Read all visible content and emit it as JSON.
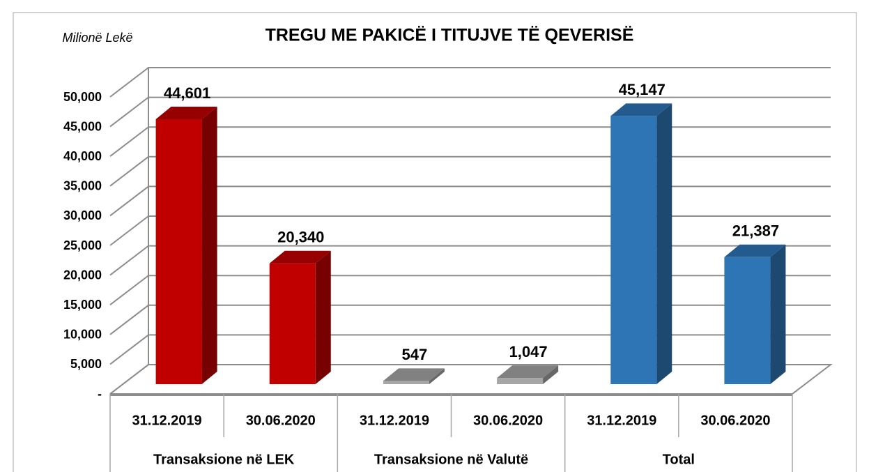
{
  "chart_data": {
    "type": "bar3d",
    "title": "TREGU ME PAKICË I TITUJVE TË QEVERISË",
    "y_label": "Milionë Lekë",
    "categories": [
      "31.12.2019",
      "30.06.2020",
      "31.12.2019",
      "30.06.2020",
      "31.12.2019",
      "30.06.2020"
    ],
    "group_categories": [
      "Transaksione në LEK",
      "Transaksione në Valutë",
      "Total"
    ],
    "values": [
      44601,
      20340,
      547,
      1047,
      45147,
      21387
    ],
    "value_labels": [
      "44,601",
      "20,340",
      "547",
      "1,047",
      "45,147",
      "21,387"
    ],
    "colors": [
      "#c00000",
      "#c00000",
      "#a6a6a6",
      "#a6a6a6",
      "#2e75b6",
      "#2e75b6"
    ],
    "ylim": [
      0,
      50000
    ],
    "yticks": [
      {
        "value": 0,
        "label": "-"
      },
      {
        "value": 5000,
        "label": "5,000"
      },
      {
        "value": 10000,
        "label": "10,000"
      },
      {
        "value": 15000,
        "label": "15,000"
      },
      {
        "value": 20000,
        "label": "20,000"
      },
      {
        "value": 25000,
        "label": "25,000"
      },
      {
        "value": 30000,
        "label": "30,000"
      },
      {
        "value": 35000,
        "label": "35,000"
      },
      {
        "value": 40000,
        "label": "40,000"
      },
      {
        "value": 45000,
        "label": "45,000"
      },
      {
        "value": 50000,
        "label": "50,000"
      }
    ],
    "grid": true
  }
}
